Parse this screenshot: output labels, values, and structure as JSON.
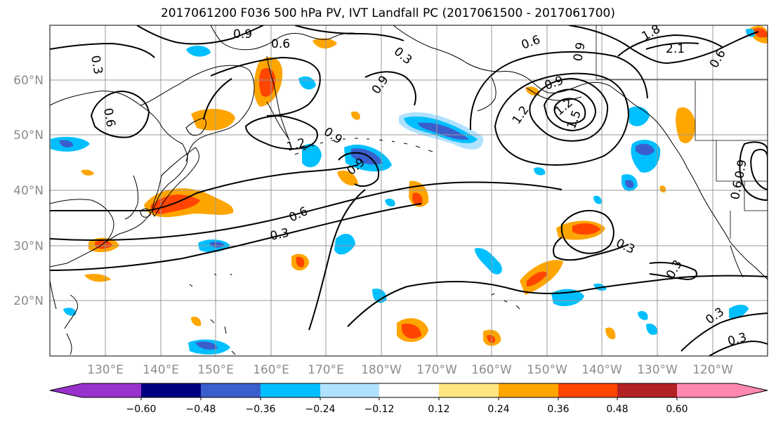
{
  "title": "2017061200 F036 500 hPa PV, IVT Landfall PC (2017061500 - 2017061700)",
  "latitude_labels": [
    "60°N",
    "50°N",
    "40°N",
    "30°N",
    "20°N"
  ],
  "longitude_labels": [
    "130°E",
    "140°E",
    "150°E",
    "160°E",
    "170°E",
    "180°W",
    "170°W",
    "160°W",
    "150°W",
    "140°W",
    "130°W",
    "120°W"
  ],
  "colorbar": {
    "tick_labels": [
      "−0.60",
      "−0.48",
      "−0.36",
      "−0.24",
      "−0.12",
      "0.12",
      "0.24",
      "0.36",
      "0.48",
      "0.60"
    ],
    "colors": [
      "#9932cc",
      "#000080",
      "#3a5fcd",
      "#00bfff",
      "#b0e2ff",
      "#ffffff",
      "#ffe680",
      "#ffa500",
      "#ff4500",
      "#b22222",
      "#ff88b0"
    ]
  },
  "contour_labels": [
    "0.9",
    "0.6",
    "0.3",
    "0.9",
    "0.6",
    "0.3",
    "0.9",
    "1.2",
    "0.9",
    "0.6",
    "0.3",
    "0.6",
    "0.9",
    "1.2",
    "1.2",
    "1.5",
    "2.1",
    "1.8",
    "0.6",
    "0.9",
    "0.3",
    "0.3",
    "0.3",
    "0.3",
    "0.9",
    "0.6"
  ],
  "colors": {
    "contour": "#000000",
    "coast": "#000000",
    "grid": "#999999",
    "ocean": "#ffffff"
  }
}
